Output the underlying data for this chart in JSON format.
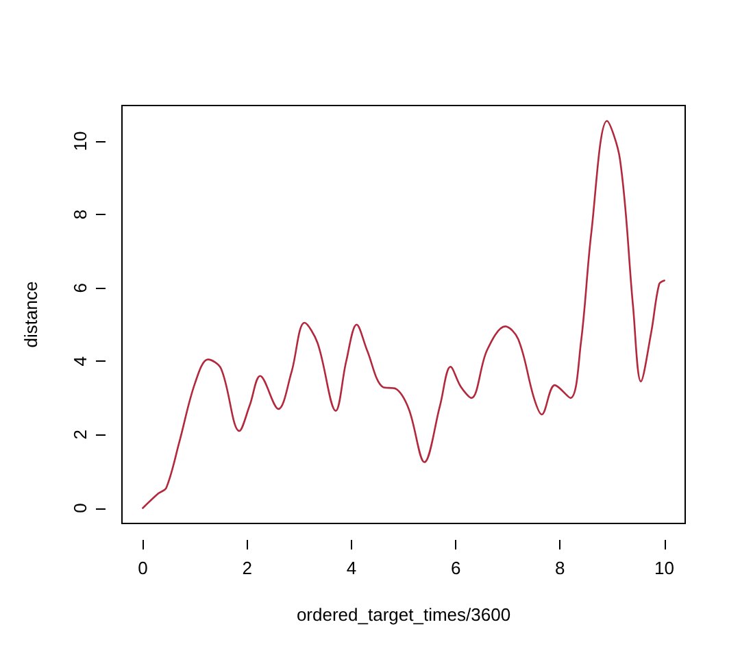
{
  "chart_data": {
    "type": "line",
    "xlabel": "ordered_target_times/3600",
    "ylabel": "distance",
    "series": [
      {
        "color": "#b2283c",
        "x": [
          0,
          0.3,
          0.45,
          0.7,
          1.0,
          1.25,
          1.5,
          1.85,
          2.05,
          2.25,
          2.6,
          2.85,
          3.1,
          3.35,
          3.7,
          3.9,
          4.1,
          4.3,
          4.6,
          4.85,
          5.1,
          5.4,
          5.7,
          5.9,
          6.1,
          6.3,
          6.6,
          6.95,
          7.2,
          7.5,
          7.65,
          7.9,
          8.2,
          8.4,
          8.6,
          8.9,
          9.15,
          9.4,
          9.55,
          9.75,
          9.9,
          10
        ],
        "values": [
          0,
          0.4,
          0.55,
          1.8,
          3.4,
          4.05,
          3.8,
          2.1,
          2.8,
          3.6,
          2.7,
          3.7,
          5.05,
          4.5,
          2.65,
          4.0,
          5.0,
          4.3,
          3.3,
          3.25,
          2.7,
          1.25,
          2.8,
          3.85,
          3.3,
          3.0,
          4.3,
          4.95,
          4.6,
          3.0,
          2.55,
          3.35,
          3.0,
          4.5,
          7.5,
          10.55,
          9.5,
          5.5,
          3.45,
          4.8,
          6.1,
          6.2
        ]
      }
    ],
    "xlim": [
      -0.4,
      10.4
    ],
    "xticks": [
      0,
      2,
      4,
      6,
      8,
      10
    ],
    "ylim": [
      -0.42,
      10.97
    ],
    "yticks": [
      0,
      2,
      4,
      6,
      8,
      10
    ],
    "grid": false,
    "marker": "none",
    "line_style": "solid"
  }
}
